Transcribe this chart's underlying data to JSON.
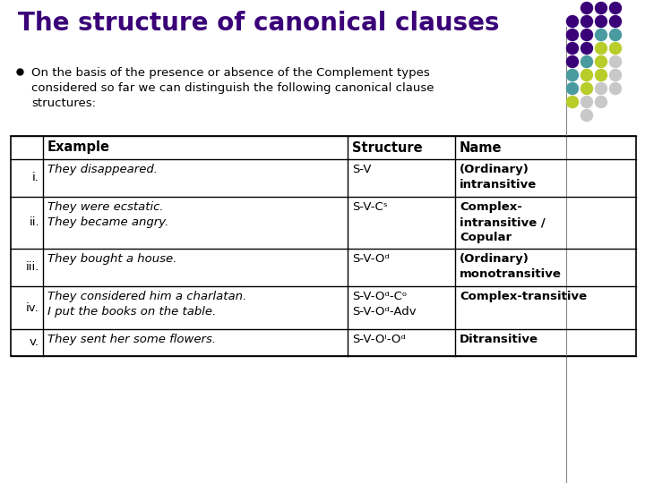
{
  "title": "The structure of canonical clauses",
  "title_color": "#3A0078",
  "bg_color": "#FFFFFF",
  "bullet_text_lines": [
    "On the basis of the presence or absence of the Complement types",
    "considered so far we can distinguish the following canonical clause",
    "structures:"
  ],
  "table_headers": [
    "",
    "Example",
    "Structure",
    "Name"
  ],
  "table_rows": [
    [
      "i.",
      "They disappeared.",
      "S-V",
      "(Ordinary)\nintransitive"
    ],
    [
      "ii.",
      "They were ecstatic.\nThey became angry.",
      "S-V-Cˢ",
      "Complex-\nintransitive /\nCopular"
    ],
    [
      "iii.",
      "They bought a house.",
      "S-V-Oᵈ",
      "(Ordinary)\nmonotransitive"
    ],
    [
      "iv.",
      "They considered him a charlatan.\nI put the books on the table.",
      "S-V-Oᵈ-Cᵒ\nS-V-Oᵈ-Adv",
      "Complex-transitive"
    ],
    [
      "v.",
      "They sent her some flowers.",
      "S-V-Oⁱ-Oᵈ",
      "Ditransitive"
    ]
  ],
  "dot_colors_grid": [
    [
      "",
      "#3A0078",
      "#3A0078",
      "#3A0078"
    ],
    [
      "#3A0078",
      "#3A0078",
      "#3A0078",
      "#3A0078"
    ],
    [
      "#3A0078",
      "#3A0078",
      "#4A9BA0",
      "#4A9BA0"
    ],
    [
      "#3A0078",
      "#3A0078",
      "#B8CC2A",
      "#B8CC2A"
    ],
    [
      "#3A0078",
      "#4A9BA0",
      "#B8CC2A",
      "#C8C8C8"
    ],
    [
      "#4A9BA0",
      "#B8CC2A",
      "#B8CC2A",
      "#C8C8C8"
    ],
    [
      "#4A9BA0",
      "#B8CC2A",
      "#C8C8C8",
      "#C8C8C8"
    ],
    [
      "#B8CC2A",
      "#C8C8C8",
      "#C8C8C8",
      ""
    ],
    [
      "",
      "#C8C8C8",
      "",
      ""
    ]
  ]
}
